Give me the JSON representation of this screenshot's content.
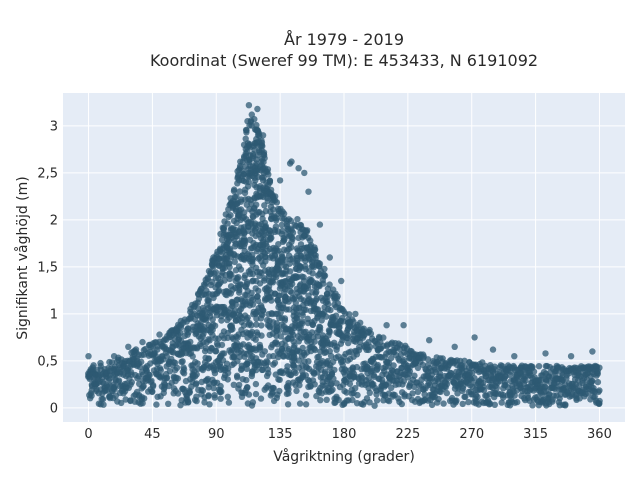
{
  "chart_data": {
    "type": "scatter",
    "title_line1": "År 1979 - 2019",
    "title_line2": "Koordinat (Sweref 99 TM): E 453433, N 6191092",
    "xlabel": "Vågriktning (grader)",
    "ylabel": "Signifikant våghöjd (m)",
    "xlim": [
      -18,
      378
    ],
    "ylim": [
      -0.15,
      3.35
    ],
    "x_ticks": [
      0,
      45,
      90,
      135,
      180,
      225,
      270,
      315,
      360
    ],
    "x_tick_labels": [
      "0",
      "45",
      "90",
      "135",
      "180",
      "225",
      "270",
      "315",
      "360"
    ],
    "y_ticks": [
      0,
      0.5,
      1,
      1.5,
      2,
      2.5,
      3
    ],
    "y_tick_labels": [
      "0",
      "0,5",
      "1",
      "1,5",
      "2",
      "2,5",
      "3"
    ],
    "grid": true,
    "plot_background": "#e5ecf6",
    "marker_color": "#2e5a73",
    "envelope": [
      {
        "x": 0,
        "ymax": 0.45
      },
      {
        "x": 15,
        "ymax": 0.5
      },
      {
        "x": 30,
        "ymax": 0.6
      },
      {
        "x": 45,
        "ymax": 0.7
      },
      {
        "x": 60,
        "ymax": 0.85
      },
      {
        "x": 75,
        "ymax": 1.15
      },
      {
        "x": 90,
        "ymax": 1.7
      },
      {
        "x": 100,
        "ymax": 2.2
      },
      {
        "x": 110,
        "ymax": 2.9
      },
      {
        "x": 115,
        "ymax": 3.15
      },
      {
        "x": 120,
        "ymax": 3.0
      },
      {
        "x": 130,
        "ymax": 2.3
      },
      {
        "x": 140,
        "ymax": 2.05
      },
      {
        "x": 150,
        "ymax": 2.0
      },
      {
        "x": 160,
        "ymax": 1.7
      },
      {
        "x": 170,
        "ymax": 1.35
      },
      {
        "x": 180,
        "ymax": 1.05
      },
      {
        "x": 195,
        "ymax": 0.85
      },
      {
        "x": 210,
        "ymax": 0.75
      },
      {
        "x": 225,
        "ymax": 0.65
      },
      {
        "x": 240,
        "ymax": 0.55
      },
      {
        "x": 270,
        "ymax": 0.5
      },
      {
        "x": 300,
        "ymax": 0.45
      },
      {
        "x": 330,
        "ymax": 0.45
      },
      {
        "x": 360,
        "ymax": 0.45
      }
    ],
    "outliers": [
      {
        "x": 0,
        "y": 0.55
      },
      {
        "x": 18,
        "y": 0.55
      },
      {
        "x": 28,
        "y": 0.65
      },
      {
        "x": 38,
        "y": 0.7
      },
      {
        "x": 50,
        "y": 0.78
      },
      {
        "x": 62,
        "y": 0.82
      },
      {
        "x": 72,
        "y": 0.95
      },
      {
        "x": 80,
        "y": 1.2
      },
      {
        "x": 88,
        "y": 1.6
      },
      {
        "x": 93,
        "y": 1.85
      },
      {
        "x": 100,
        "y": 2.05
      },
      {
        "x": 112,
        "y": 3.05
      },
      {
        "x": 113,
        "y": 3.22
      },
      {
        "x": 115,
        "y": 3.12
      },
      {
        "x": 119,
        "y": 3.18
      },
      {
        "x": 123,
        "y": 2.9
      },
      {
        "x": 135,
        "y": 2.42
      },
      {
        "x": 142,
        "y": 2.6
      },
      {
        "x": 143,
        "y": 2.62
      },
      {
        "x": 148,
        "y": 2.55
      },
      {
        "x": 152,
        "y": 2.5
      },
      {
        "x": 155,
        "y": 2.3
      },
      {
        "x": 163,
        "y": 1.95
      },
      {
        "x": 170,
        "y": 1.6
      },
      {
        "x": 178,
        "y": 1.35
      },
      {
        "x": 188,
        "y": 1.0
      },
      {
        "x": 210,
        "y": 0.88
      },
      {
        "x": 222,
        "y": 0.88
      },
      {
        "x": 240,
        "y": 0.72
      },
      {
        "x": 258,
        "y": 0.65
      },
      {
        "x": 272,
        "y": 0.75
      },
      {
        "x": 285,
        "y": 0.62
      },
      {
        "x": 300,
        "y": 0.55
      },
      {
        "x": 322,
        "y": 0.58
      },
      {
        "x": 340,
        "y": 0.55
      },
      {
        "x": 355,
        "y": 0.6
      }
    ]
  }
}
